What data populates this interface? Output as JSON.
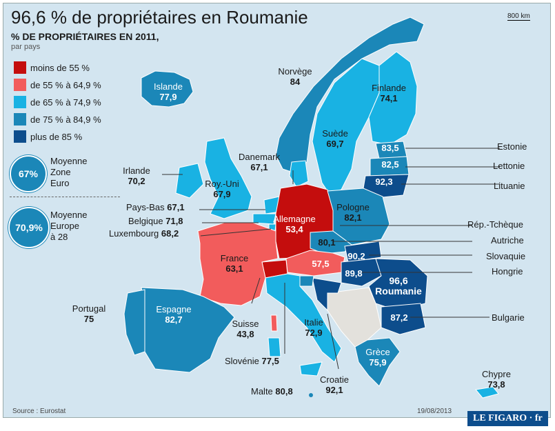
{
  "title": "96,6 % de propriétaires en Roumanie",
  "subtitle": "% DE PROPRIÉTAIRES EN 2011,",
  "subsubtitle": "par pays",
  "scale_label": "800  km",
  "colors": {
    "sea": "#d3e5f0",
    "lt55": "#c40d0d",
    "c55_64": "#f25c5c",
    "c65_74": "#19b2e3",
    "c75_84": "#1b87b8",
    "c85": "#0d4d8c",
    "other": "#e3e1dc"
  },
  "legend": [
    {
      "label": "moins de 55 %",
      "color": "#c40d0d"
    },
    {
      "label": "de 55 % à 64,9 %",
      "color": "#f25c5c"
    },
    {
      "label": "de 65 % à 74,9 %",
      "color": "#19b2e3"
    },
    {
      "label": "de 75 % à 84,9 %",
      "color": "#1b87b8"
    },
    {
      "label": "plus de  85 %",
      "color": "#0d4d8c"
    }
  ],
  "averages": [
    {
      "value": "67%",
      "label": "Moyenne Zone Euro",
      "lines": [
        "Moyenne",
        "Zone",
        "Euro"
      ]
    },
    {
      "value": "70,9%",
      "label": "Moyenne Europe à 28",
      "lines": [
        "Moyenne",
        "Europe",
        "à 28"
      ]
    }
  ],
  "countries": {
    "islande": {
      "name": "Islande",
      "value": "77,9"
    },
    "norvege": {
      "name": "Norvège",
      "value": "84"
    },
    "finlande": {
      "name": "Finlande",
      "value": "74,1"
    },
    "suede": {
      "name": "Suède",
      "value": "69,7"
    },
    "danemark": {
      "name": "Danemark",
      "value": "67,1"
    },
    "irlande": {
      "name": "Irlande",
      "value": "70,2"
    },
    "royuni": {
      "name": "Roy.-Uni",
      "value": "67,9"
    },
    "allemagne": {
      "name": "Allemagne",
      "value": "53,4"
    },
    "pologne": {
      "name": "Pologne",
      "value": "82,1"
    },
    "france": {
      "name": "France",
      "value": "63,1"
    },
    "espagne": {
      "name": "Espagne",
      "value": "82,7"
    },
    "portugal": {
      "name": "Portugal",
      "value": "75"
    },
    "suisse": {
      "name": "Suisse",
      "value": "43,8"
    },
    "italie": {
      "name": "Italie",
      "value": "72,9"
    },
    "grece": {
      "name": "Grèce",
      "value": "75,9"
    },
    "roumanie": {
      "name": "Roumanie",
      "value": "96,6"
    },
    "chypre": {
      "name": "Chypre",
      "value": "73,8"
    },
    "estonie": {
      "name": "Estonie",
      "value": "83,5"
    },
    "lettonie": {
      "name": "Lettonie",
      "value": "82,5"
    },
    "lituanie": {
      "name": "Lituanie",
      "value": "92,3"
    },
    "paysbas": {
      "name": "Pays-Bas",
      "value": "67,1"
    },
    "belgique": {
      "name": "Belgique",
      "value": "71,8"
    },
    "luxembourg": {
      "name": "Luxembourg",
      "value": "68,2"
    },
    "reptcheque": {
      "name": "Rép.-Tchèque",
      "value": "80,1"
    },
    "autriche": {
      "name": "Autriche",
      "value": "57,5"
    },
    "slovaquie": {
      "name": "Slovaquie",
      "value": "90,2"
    },
    "hongrie": {
      "name": "Hongrie",
      "value": "89,8"
    },
    "bulgarie": {
      "name": "Bulgarie",
      "value": "87,2"
    },
    "slovenie": {
      "name": "Slovénie",
      "value": "77,5"
    },
    "croatie": {
      "name": "Croatie",
      "value": "92,1"
    },
    "malte": {
      "name": "Malte",
      "value": "80,8"
    }
  },
  "footer": {
    "source": "Source : Eurostat",
    "date": "19/08/2013",
    "logo": "LE FIGARO · fr"
  }
}
